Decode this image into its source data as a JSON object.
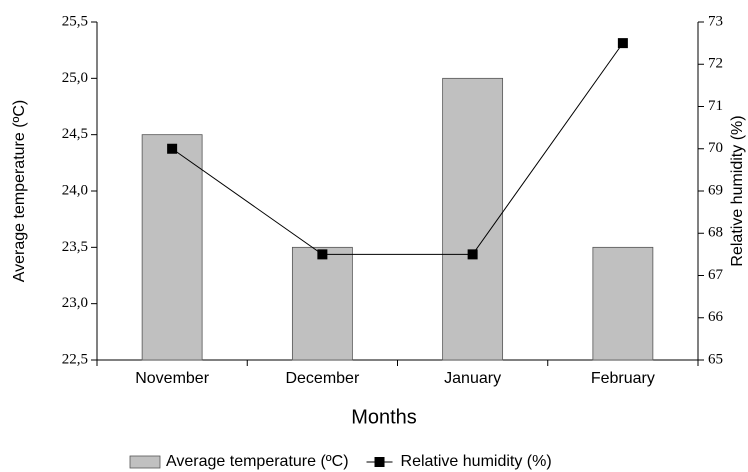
{
  "chart_data": {
    "type": "bar-line",
    "x_label": "Months",
    "y_label": "Average temperature (ºC)",
    "y2_label": "Relative humidity (%)",
    "categories": [
      "November",
      "December",
      "January",
      "February"
    ],
    "series": [
      {
        "name": "Average temperature (ºC)",
        "type": "bar",
        "color": "#c0c0c0",
        "values": [
          24.5,
          23.5,
          25.0,
          23.5
        ]
      },
      {
        "name": "Relative humidity (%)",
        "type": "line",
        "axis": "y2",
        "color": "#000000",
        "values": [
          70,
          67.5,
          67.5,
          72.5
        ]
      }
    ],
    "ylim": [
      22.5,
      25.5
    ],
    "yticks": [
      {
        "value": 22.5,
        "label": "22,5"
      },
      {
        "value": 23.0,
        "label": "23,0"
      },
      {
        "value": 23.5,
        "label": "23,5"
      },
      {
        "value": 24.0,
        "label": "24,0"
      },
      {
        "value": 24.5,
        "label": "24,5"
      },
      {
        "value": 25.0,
        "label": "25,0"
      },
      {
        "value": 25.5,
        "label": "25,5"
      }
    ],
    "y2lim": [
      65,
      73
    ],
    "y2ticks": [
      65,
      66,
      67,
      68,
      69,
      70,
      71,
      72,
      73
    ],
    "legend": "bottom"
  }
}
